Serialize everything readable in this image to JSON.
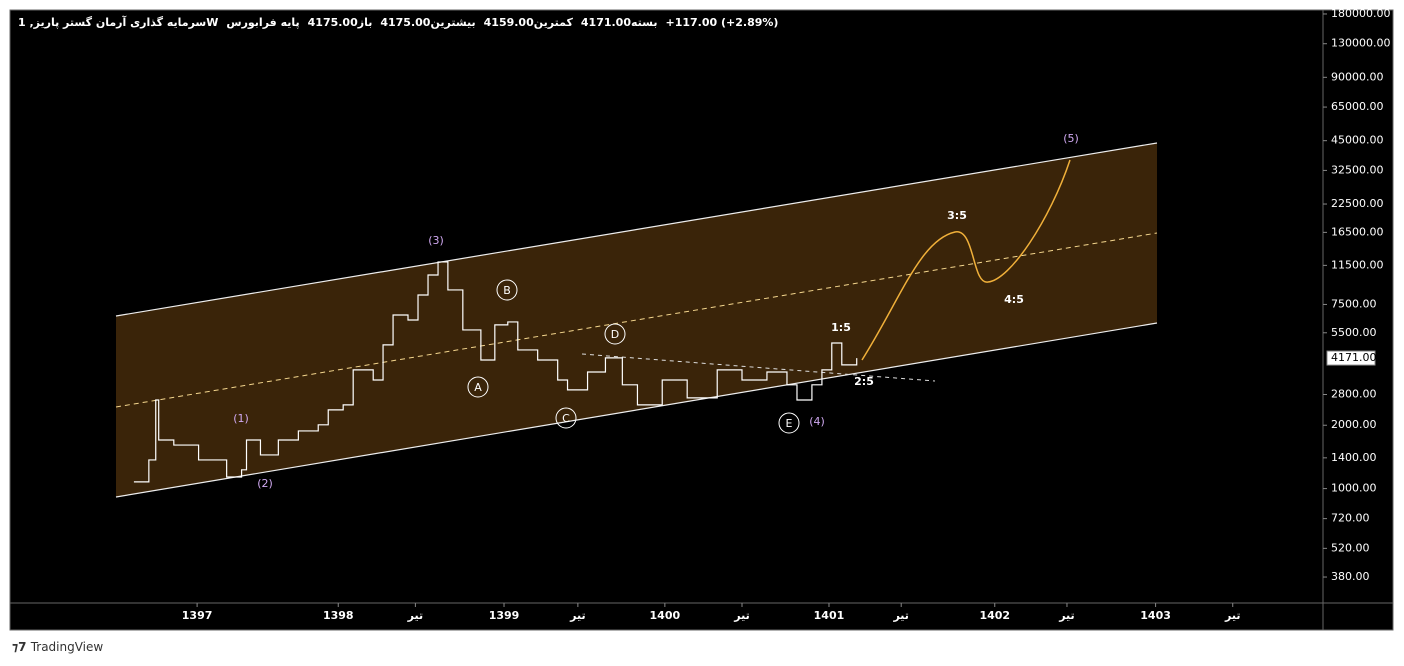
{
  "header": {
    "symbol": "سرمایه گذاری آرمان گستر پاریز, 1W",
    "market": "پایه فرابورس",
    "fields": [
      {
        "label": "باز",
        "value": "4175.00"
      },
      {
        "label": "بیشترین",
        "value": "4175.00"
      },
      {
        "label": "کمترین",
        "value": "4159.00"
      },
      {
        "label": "بسته",
        "value": "4171.00"
      }
    ],
    "change": "+117.00 (+2.89%)"
  },
  "chart_data": {
    "type": "line",
    "log_scale": true,
    "color": "#ffffff",
    "x": [
      1396.755,
      1396.846,
      1396.888,
      1396.906,
      1396.998,
      1397.149,
      1397.32,
      1397.411,
      1397.441,
      1397.526,
      1397.635,
      1397.757,
      1397.878,
      1397.939,
      1398.03,
      1398.091,
      1398.213,
      1398.273,
      1398.334,
      1398.425,
      1398.486,
      1398.547,
      1398.608,
      1398.668,
      1398.759,
      1398.869,
      1398.954,
      1399.033,
      1399.094,
      1399.215,
      1399.337,
      1399.397,
      1399.519,
      1399.628,
      1399.731,
      1399.823,
      1399.974,
      1400.126,
      1400.309,
      1400.46,
      1400.612,
      1400.734,
      1400.795,
      1400.886,
      1400.947,
      1401.007,
      1401.068,
      1401.159
    ],
    "values": [
      1076,
      1368,
      2637,
      1702,
      1610,
      1368,
      1135,
      1228,
      1702,
      1445,
      1702,
      1879,
      2009,
      2366,
      2500,
      3664,
      3281,
      4818,
      6683,
      6324,
      8318,
      10351,
      11940,
      8790,
      5675,
      4085,
      5998,
      6194,
      4560,
      4085,
      3281,
      2945,
      3581,
      4179,
      3112,
      2500,
      3281,
      2698,
      3664,
      3281,
      3581,
      3112,
      2637,
      3112,
      3664,
      4920,
      3873,
      4171
    ],
    "last_value": 4171,
    "last_value_label": "4171.00",
    "xlim": [
      1396,
      1404
    ],
    "ylim": [
      286,
      188000
    ],
    "xticks": [
      {
        "value": 1397.14,
        "label": "1397"
      },
      {
        "value": 1398,
        "label": "1398"
      },
      {
        "value": 1398.47,
        "label": "تیر"
      },
      {
        "value": 1399.01,
        "label": "1399"
      },
      {
        "value": 1399.46,
        "label": "تیر"
      },
      {
        "value": 1399.99,
        "label": "1400"
      },
      {
        "value": 1400.46,
        "label": "تیر"
      },
      {
        "value": 1400.99,
        "label": "1401"
      },
      {
        "value": 1401.43,
        "label": "تیر"
      },
      {
        "value": 1402,
        "label": "1402"
      },
      {
        "value": 1402.44,
        "label": "تیر"
      },
      {
        "value": 1402.98,
        "label": "1403"
      },
      {
        "value": 1403.45,
        "label": "تیر"
      }
    ],
    "yticks": [
      {
        "value": 180000,
        "label": "180000.00"
      },
      {
        "value": 130000,
        "label": "130000.00"
      },
      {
        "value": 90000,
        "label": "90000.00"
      },
      {
        "value": 65000,
        "label": "65000.00"
      },
      {
        "value": 45000,
        "label": "45000.00"
      },
      {
        "value": 32500,
        "label": "32500.00"
      },
      {
        "value": 22500,
        "label": "22500.00"
      },
      {
        "value": 16500,
        "label": "16500.00"
      },
      {
        "value": 11500,
        "label": "11500.00"
      },
      {
        "value": 7500,
        "label": "7500.00"
      },
      {
        "value": 5500,
        "label": "5500.00"
      },
      {
        "value": 2800,
        "label": "2800.00"
      },
      {
        "value": 2000,
        "label": "2000.00"
      },
      {
        "value": 1400,
        "label": "1400.00"
      },
      {
        "value": 1000,
        "label": "1000.00"
      },
      {
        "value": 720,
        "label": "720.00"
      },
      {
        "value": 520,
        "label": "520.00"
      },
      {
        "value": 380,
        "label": "380.00"
      }
    ],
    "annotations": [
      "(1)",
      "(2)",
      "(3)",
      "(4)",
      "(5)",
      "A",
      "B",
      "C",
      "D",
      "E",
      "1:5",
      "2:5",
      "3:5",
      "4:5"
    ]
  },
  "footer": "TradingView"
}
